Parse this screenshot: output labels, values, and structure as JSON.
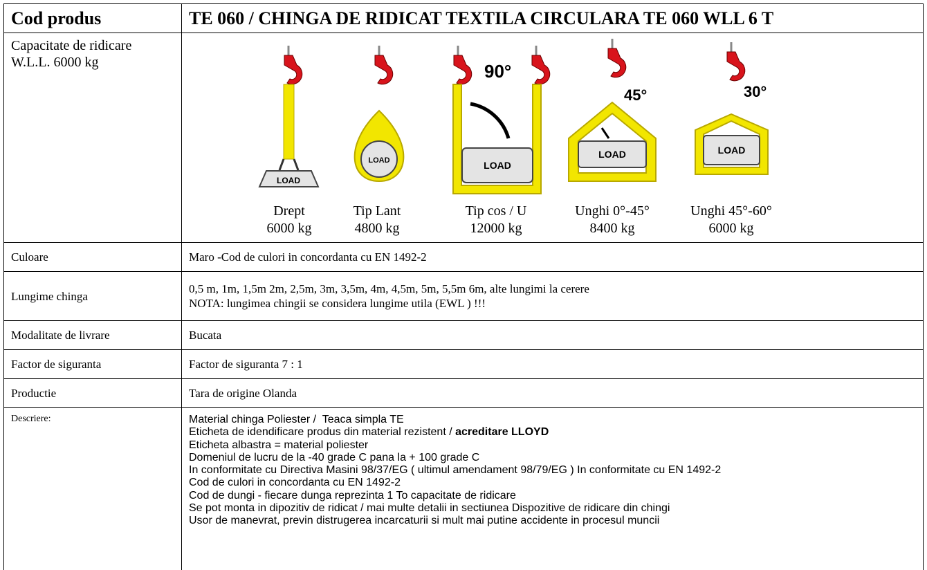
{
  "header": {
    "label": "Cod produs",
    "value": "TE 060 / CHINGA DE RIDICAT TEXTILA CIRCULARA TE 060 WLL 6 T"
  },
  "capacity": {
    "label": [
      "Capacitate de ridicare",
      "W.L.L. 6000 kg"
    ],
    "configurations": [
      {
        "name": "Drept",
        "load": "6000 kg",
        "icon_text": "LOAD"
      },
      {
        "name": "Tip Lant",
        "load": "4800 kg",
        "icon_text": "LOAD"
      },
      {
        "name": "Tip cos / U",
        "load": "12000 kg",
        "icon_text": "LOAD",
        "angle": "90°"
      },
      {
        "name": "Unghi 0°-45°",
        "load": "8400 kg",
        "icon_text": "LOAD",
        "angle": "45°"
      },
      {
        "name": "Unghi 45°-60°",
        "load": "6000 kg",
        "icon_text": "LOAD",
        "angle": "30°"
      }
    ]
  },
  "rows": [
    {
      "label": "Culoare",
      "lines": [
        "Maro -Cod de culori in concordanta cu EN 1492-2"
      ]
    },
    {
      "label": "Lungime chinga",
      "lines": [
        "0,5 m, 1m, 1,5m 2m, 2,5m, 3m, 3,5m, 4m, 4,5m, 5m, 5,5m 6m,  alte lungimi la cerere",
        "NOTA: lungimea chingii se considera lungime utila (EWL ) !!!"
      ]
    },
    {
      "label": "Modalitate de livrare",
      "lines": [
        "Bucata"
      ]
    },
    {
      "label": "Factor de siguranta",
      "lines": [
        "Factor de siguranta 7 : 1"
      ]
    },
    {
      "label": "Productie",
      "lines": [
        "Tara de origine Olanda"
      ]
    }
  ],
  "description": {
    "label": "Descriere:",
    "lines": [
      {
        "text": "Material chinga Poliester /  Teaca simpla TE"
      },
      {
        "text": "Eticheta de idendificare produs din material rezistent / ",
        "bold": "acreditare LLOYD"
      },
      {
        "text": "Eticheta albastra = material poliester"
      },
      {
        "text": "Domeniul de lucru de la -40 grade C pana la + 100 grade C"
      },
      {
        "text": "In conformitate cu Directiva Masini 98/37/EG ( ultimul amendament 98/79/EG ) In conformitate cu EN 1492-2"
      },
      {
        "text": "Cod de culori in concordanta cu EN 1492-2"
      },
      {
        "text": "Cod de dungi - fiecare dunga reprezinta 1 To capacitate de ridicare"
      },
      {
        "text": "Se pot monta in dipozitiv de ridicat / mai multe detalii in sectiunea Dispozitive de ridicare din chingi"
      },
      {
        "text": "Usor de manevrat, previn distrugerea incarcaturii si mult mai putine accidente in procesul muncii"
      }
    ]
  }
}
